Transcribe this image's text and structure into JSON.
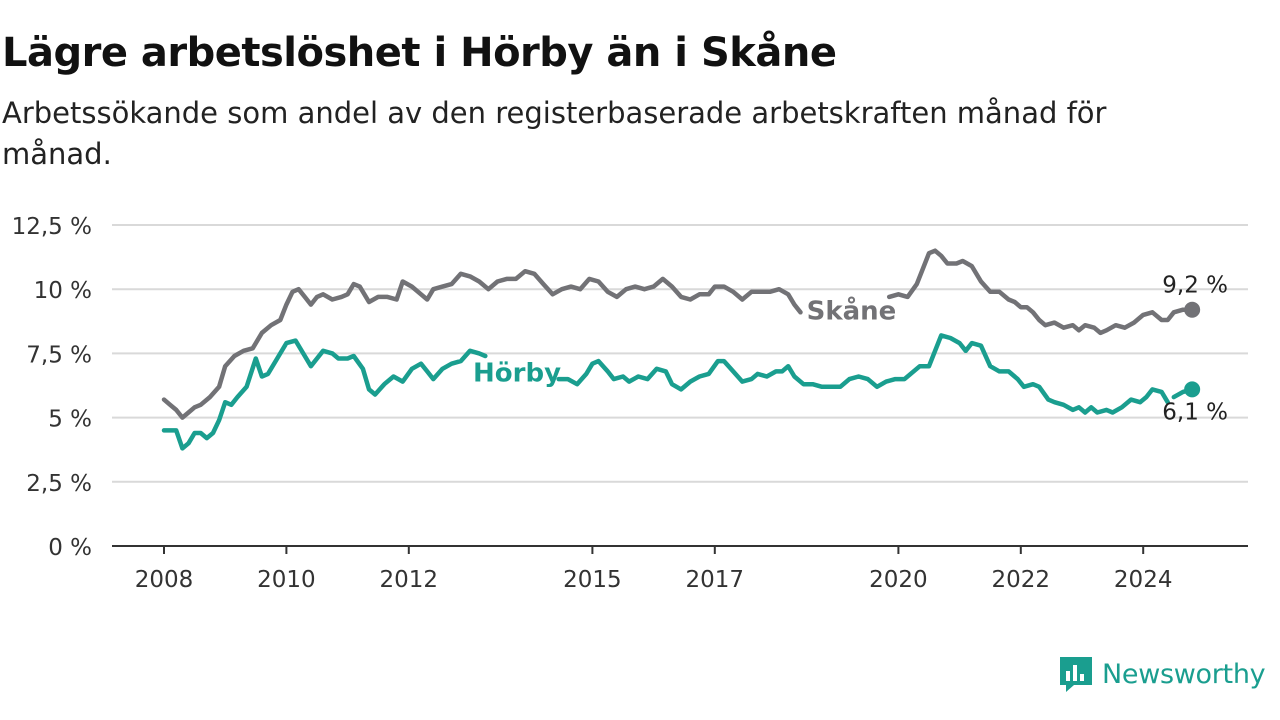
{
  "title": "Lägre arbetslöshet i Hörby än i Skåne",
  "subtitle": "Arbetssökande som andel av den registerbaserade arbetskraften månad för månad.",
  "brand": {
    "name": "Newsworthy",
    "icon": "newsworthy-logo-icon",
    "color": "#1a9e8f"
  },
  "chart_data": {
    "type": "line",
    "title": "Lägre arbetslöshet i Hörby än i Skåne",
    "ylim": [
      0,
      12.5
    ],
    "y_ticks": [
      0,
      2.5,
      5,
      7.5,
      10,
      12.5
    ],
    "y_tick_labels": [
      "0 %",
      "2,5 %",
      "5 %",
      "7,5 %",
      "10 %",
      "12,5 %"
    ],
    "x_ticks": [
      2008,
      2010,
      2012,
      2015,
      2017,
      2020,
      2022,
      2024
    ],
    "x_tick_labels": [
      "2008",
      "2010",
      "2012",
      "2015",
      "2017",
      "2020",
      "2022",
      "2024"
    ],
    "xlim": [
      2007.2,
      2025.7
    ],
    "grid": true,
    "series": [
      {
        "name": "Skåne",
        "color": "#727276",
        "end_label": "9,2 %",
        "points": [
          [
            2008.0,
            5.7
          ],
          [
            2008.1,
            5.5
          ],
          [
            2008.2,
            5.3
          ],
          [
            2008.3,
            5.0
          ],
          [
            2008.4,
            5.2
          ],
          [
            2008.5,
            5.4
          ],
          [
            2008.6,
            5.5
          ],
          [
            2008.75,
            5.8
          ],
          [
            2008.9,
            6.2
          ],
          [
            2009.0,
            7.0
          ],
          [
            2009.15,
            7.4
          ],
          [
            2009.3,
            7.6
          ],
          [
            2009.45,
            7.7
          ],
          [
            2009.6,
            8.3
          ],
          [
            2009.75,
            8.6
          ],
          [
            2009.9,
            8.8
          ],
          [
            2010.0,
            9.4
          ],
          [
            2010.1,
            9.9
          ],
          [
            2010.2,
            10.0
          ],
          [
            2010.3,
            9.7
          ],
          [
            2010.4,
            9.4
          ],
          [
            2010.5,
            9.7
          ],
          [
            2010.6,
            9.8
          ],
          [
            2010.75,
            9.6
          ],
          [
            2010.9,
            9.7
          ],
          [
            2011.0,
            9.8
          ],
          [
            2011.1,
            10.2
          ],
          [
            2011.2,
            10.1
          ],
          [
            2011.35,
            9.5
          ],
          [
            2011.5,
            9.7
          ],
          [
            2011.65,
            9.7
          ],
          [
            2011.8,
            9.6
          ],
          [
            2011.9,
            10.3
          ],
          [
            2012.05,
            10.1
          ],
          [
            2012.2,
            9.8
          ],
          [
            2012.3,
            9.6
          ],
          [
            2012.4,
            10.0
          ],
          [
            2012.55,
            10.1
          ],
          [
            2012.7,
            10.2
          ],
          [
            2012.85,
            10.6
          ],
          [
            2013.0,
            10.5
          ],
          [
            2013.15,
            10.3
          ],
          [
            2013.3,
            10.0
          ],
          [
            2013.45,
            10.3
          ],
          [
            2013.6,
            10.4
          ],
          [
            2013.75,
            10.4
          ],
          [
            2013.9,
            10.7
          ],
          [
            2014.05,
            10.6
          ],
          [
            2014.2,
            10.2
          ],
          [
            2014.35,
            9.8
          ],
          [
            2014.5,
            10.0
          ],
          [
            2014.65,
            10.1
          ],
          [
            2014.8,
            10.0
          ],
          [
            2014.95,
            10.4
          ],
          [
            2015.1,
            10.3
          ],
          [
            2015.25,
            9.9
          ],
          [
            2015.4,
            9.7
          ],
          [
            2015.55,
            10.0
          ],
          [
            2015.7,
            10.1
          ],
          [
            2015.85,
            10.0
          ],
          [
            2016.0,
            10.1
          ],
          [
            2016.15,
            10.4
          ],
          [
            2016.3,
            10.1
          ],
          [
            2016.45,
            9.7
          ],
          [
            2016.6,
            9.6
          ],
          [
            2016.75,
            9.8
          ],
          [
            2016.9,
            9.8
          ],
          [
            2017.0,
            10.1
          ],
          [
            2017.15,
            10.1
          ],
          [
            2017.3,
            9.9
          ],
          [
            2017.45,
            9.6
          ],
          [
            2017.6,
            9.9
          ],
          [
            2017.75,
            9.9
          ],
          [
            2017.9,
            9.9
          ],
          [
            2018.05,
            10.0
          ],
          [
            2018.2,
            9.8
          ],
          [
            2018.3,
            9.4
          ],
          [
            2018.4,
            9.1
          ],
          null,
          [
            2019.85,
            9.7
          ],
          [
            2020.0,
            9.8
          ],
          [
            2020.15,
            9.7
          ],
          [
            2020.3,
            10.2
          ],
          [
            2020.4,
            10.8
          ],
          [
            2020.5,
            11.4
          ],
          [
            2020.6,
            11.5
          ],
          [
            2020.7,
            11.3
          ],
          [
            2020.8,
            11.0
          ],
          [
            2020.95,
            11.0
          ],
          [
            2021.05,
            11.1
          ],
          [
            2021.2,
            10.9
          ],
          [
            2021.35,
            10.3
          ],
          [
            2021.5,
            9.9
          ],
          [
            2021.65,
            9.9
          ],
          [
            2021.8,
            9.6
          ],
          [
            2021.9,
            9.5
          ],
          [
            2022.0,
            9.3
          ],
          [
            2022.1,
            9.3
          ],
          [
            2022.2,
            9.1
          ],
          [
            2022.3,
            8.8
          ],
          [
            2022.4,
            8.6
          ],
          [
            2022.55,
            8.7
          ],
          [
            2022.7,
            8.5
          ],
          [
            2022.85,
            8.6
          ],
          [
            2022.95,
            8.4
          ],
          [
            2023.05,
            8.6
          ],
          [
            2023.2,
            8.5
          ],
          [
            2023.3,
            8.3
          ],
          [
            2023.4,
            8.4
          ],
          [
            2023.55,
            8.6
          ],
          [
            2023.7,
            8.5
          ],
          [
            2023.85,
            8.7
          ],
          [
            2024.0,
            9.0
          ],
          [
            2024.15,
            9.1
          ],
          [
            2024.3,
            8.8
          ],
          [
            2024.4,
            8.8
          ],
          [
            2024.5,
            9.1
          ],
          [
            2024.65,
            9.2
          ],
          [
            2024.8,
            9.2
          ]
        ]
      },
      {
        "name": "Hörby",
        "color": "#1a9e8f",
        "end_label": "6,1 %",
        "points": [
          [
            2008.0,
            4.5
          ],
          [
            2008.2,
            4.5
          ],
          [
            2008.3,
            3.8
          ],
          [
            2008.4,
            4.0
          ],
          [
            2008.5,
            4.4
          ],
          [
            2008.6,
            4.4
          ],
          [
            2008.7,
            4.2
          ],
          [
            2008.8,
            4.4
          ],
          [
            2008.9,
            4.9
          ],
          [
            2009.0,
            5.6
          ],
          [
            2009.1,
            5.5
          ],
          [
            2009.2,
            5.8
          ],
          [
            2009.35,
            6.2
          ],
          [
            2009.5,
            7.3
          ],
          [
            2009.6,
            6.6
          ],
          [
            2009.7,
            6.7
          ],
          [
            2009.85,
            7.3
          ],
          [
            2010.0,
            7.9
          ],
          [
            2010.15,
            8.0
          ],
          [
            2010.3,
            7.4
          ],
          [
            2010.4,
            7.0
          ],
          [
            2010.5,
            7.3
          ],
          [
            2010.6,
            7.6
          ],
          [
            2010.75,
            7.5
          ],
          [
            2010.85,
            7.3
          ],
          [
            2011.0,
            7.3
          ],
          [
            2011.1,
            7.4
          ],
          [
            2011.25,
            6.9
          ],
          [
            2011.35,
            6.1
          ],
          [
            2011.45,
            5.9
          ],
          [
            2011.6,
            6.3
          ],
          [
            2011.75,
            6.6
          ],
          [
            2011.9,
            6.4
          ],
          [
            2012.05,
            6.9
          ],
          [
            2012.2,
            7.1
          ],
          [
            2012.3,
            6.8
          ],
          [
            2012.4,
            6.5
          ],
          [
            2012.55,
            6.9
          ],
          [
            2012.7,
            7.1
          ],
          [
            2012.85,
            7.2
          ],
          [
            2013.0,
            7.6
          ],
          [
            2013.15,
            7.5
          ],
          [
            2013.25,
            7.4
          ],
          null,
          [
            2014.45,
            6.5
          ],
          [
            2014.6,
            6.5
          ],
          [
            2014.75,
            6.3
          ],
          [
            2014.9,
            6.7
          ],
          [
            2015.0,
            7.1
          ],
          [
            2015.1,
            7.2
          ],
          [
            2015.25,
            6.8
          ],
          [
            2015.35,
            6.5
          ],
          [
            2015.5,
            6.6
          ],
          [
            2015.6,
            6.4
          ],
          [
            2015.75,
            6.6
          ],
          [
            2015.9,
            6.5
          ],
          [
            2016.05,
            6.9
          ],
          [
            2016.2,
            6.8
          ],
          [
            2016.3,
            6.3
          ],
          [
            2016.45,
            6.1
          ],
          [
            2016.6,
            6.4
          ],
          [
            2016.75,
            6.6
          ],
          [
            2016.9,
            6.7
          ],
          [
            2017.05,
            7.2
          ],
          [
            2017.15,
            7.2
          ],
          [
            2017.3,
            6.8
          ],
          [
            2017.45,
            6.4
          ],
          [
            2017.6,
            6.5
          ],
          [
            2017.7,
            6.7
          ],
          [
            2017.85,
            6.6
          ],
          [
            2018.0,
            6.8
          ],
          [
            2018.1,
            6.8
          ],
          [
            2018.2,
            7.0
          ],
          [
            2018.3,
            6.6
          ],
          [
            2018.45,
            6.3
          ],
          [
            2018.6,
            6.3
          ],
          [
            2018.75,
            6.2
          ],
          [
            2018.9,
            6.2
          ],
          [
            2019.05,
            6.2
          ],
          [
            2019.2,
            6.5
          ],
          [
            2019.35,
            6.6
          ],
          [
            2019.5,
            6.5
          ],
          [
            2019.65,
            6.2
          ],
          [
            2019.8,
            6.4
          ],
          [
            2019.95,
            6.5
          ],
          [
            2020.1,
            6.5
          ],
          [
            2020.2,
            6.7
          ],
          [
            2020.35,
            7.0
          ],
          [
            2020.5,
            7.0
          ],
          [
            2020.6,
            7.6
          ],
          [
            2020.7,
            8.2
          ],
          [
            2020.85,
            8.1
          ],
          [
            2021.0,
            7.9
          ],
          [
            2021.1,
            7.6
          ],
          [
            2021.2,
            7.9
          ],
          [
            2021.35,
            7.8
          ],
          [
            2021.5,
            7.0
          ],
          [
            2021.65,
            6.8
          ],
          [
            2021.8,
            6.8
          ],
          [
            2021.95,
            6.5
          ],
          [
            2022.05,
            6.2
          ],
          [
            2022.2,
            6.3
          ],
          [
            2022.3,
            6.2
          ],
          [
            2022.45,
            5.7
          ],
          [
            2022.55,
            5.6
          ],
          [
            2022.7,
            5.5
          ],
          [
            2022.85,
            5.3
          ],
          [
            2022.95,
            5.4
          ],
          [
            2023.05,
            5.2
          ],
          [
            2023.15,
            5.4
          ],
          [
            2023.25,
            5.2
          ],
          [
            2023.4,
            5.3
          ],
          [
            2023.5,
            5.2
          ],
          [
            2023.65,
            5.4
          ],
          [
            2023.8,
            5.7
          ],
          [
            2023.95,
            5.6
          ],
          [
            2024.05,
            5.8
          ],
          [
            2024.15,
            6.1
          ],
          [
            2024.3,
            6.0
          ],
          [
            2024.4,
            5.6
          ],
          null,
          [
            2024.5,
            5.8
          ],
          [
            2024.65,
            6.0
          ],
          [
            2024.8,
            6.1
          ]
        ]
      }
    ]
  }
}
